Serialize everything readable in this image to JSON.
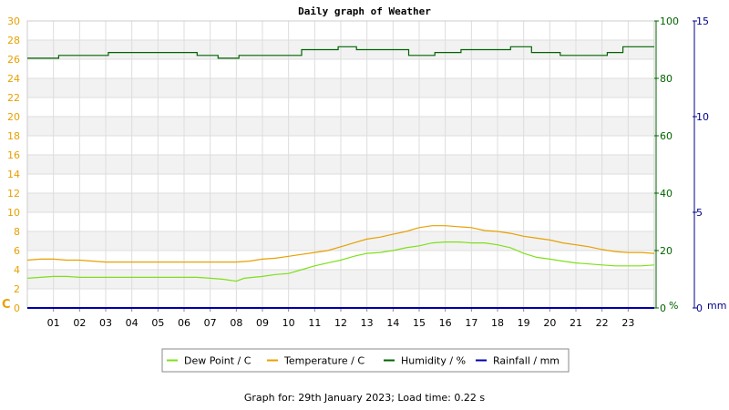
{
  "footer": "Graph for: 29th January 2023; Load time: 0.22 s",
  "chart_data": {
    "type": "line",
    "title": "Daily graph of Weather",
    "x_ticks": [
      "01",
      "02",
      "03",
      "04",
      "05",
      "06",
      "07",
      "08",
      "09",
      "10",
      "11",
      "12",
      "13",
      "14",
      "15",
      "16",
      "17",
      "18",
      "19",
      "20",
      "21",
      "22",
      "23"
    ],
    "xlim": [
      0,
      24
    ],
    "grid": true,
    "legend_position": "bottom-center",
    "axes": {
      "left": {
        "unit_label": "C",
        "ylim": [
          0,
          30
        ],
        "ticks": [
          0,
          2,
          4,
          6,
          8,
          10,
          12,
          14,
          16,
          18,
          20,
          22,
          24,
          26,
          28,
          30
        ],
        "color": "#e8a000"
      },
      "right1": {
        "unit_label": "%",
        "ylim": [
          0,
          100
        ],
        "ticks": [
          0,
          20,
          40,
          60,
          80,
          100
        ],
        "color": "#006400"
      },
      "right2": {
        "unit_label": "mm",
        "ylim": [
          0,
          15
        ],
        "ticks": [
          0,
          5,
          10,
          15
        ],
        "color": "#00008b"
      }
    },
    "series": [
      {
        "name": "Dew Point / C",
        "axis": "left",
        "color": "#7ee01a",
        "x": [
          0,
          0.5,
          1,
          1.5,
          2,
          2.5,
          3,
          4,
          5,
          6,
          6.5,
          7,
          7.5,
          8,
          8.3,
          9,
          9.5,
          10,
          10.5,
          11,
          11.5,
          12,
          12.5,
          13,
          13.5,
          14,
          14.5,
          15,
          15.5,
          16,
          16.5,
          17,
          17.5,
          18,
          18.5,
          19,
          19.5,
          20,
          20.5,
          21,
          21.5,
          22,
          22.5,
          23,
          23.5,
          24
        ],
        "y": [
          3.1,
          3.2,
          3.3,
          3.3,
          3.2,
          3.2,
          3.2,
          3.2,
          3.2,
          3.2,
          3.2,
          3.1,
          3.0,
          2.8,
          3.1,
          3.3,
          3.5,
          3.6,
          4.0,
          4.4,
          4.7,
          5.0,
          5.4,
          5.7,
          5.8,
          6.0,
          6.3,
          6.5,
          6.8,
          6.9,
          6.9,
          6.8,
          6.8,
          6.6,
          6.3,
          5.7,
          5.3,
          5.1,
          4.9,
          4.7,
          4.6,
          4.5,
          4.4,
          4.4,
          4.4,
          4.5
        ]
      },
      {
        "name": "Temperature / C",
        "axis": "left",
        "color": "#e8a000",
        "x": [
          0,
          0.5,
          1,
          1.5,
          2,
          2.5,
          3,
          4,
          5,
          6,
          7,
          7.5,
          8,
          8.5,
          9,
          9.5,
          10,
          10.5,
          11,
          11.5,
          12,
          12.5,
          13,
          13.5,
          14,
          14.5,
          15,
          15.5,
          16,
          16.5,
          17,
          17.5,
          18,
          18.5,
          19,
          19.5,
          20,
          20.5,
          21,
          21.5,
          22,
          22.5,
          23,
          23.5,
          24
        ],
        "y": [
          5.0,
          5.1,
          5.1,
          5.0,
          5.0,
          4.9,
          4.8,
          4.8,
          4.8,
          4.8,
          4.8,
          4.8,
          4.8,
          4.9,
          5.1,
          5.2,
          5.4,
          5.6,
          5.8,
          6.0,
          6.4,
          6.8,
          7.2,
          7.4,
          7.7,
          8.0,
          8.4,
          8.6,
          8.6,
          8.5,
          8.4,
          8.1,
          8.0,
          7.8,
          7.5,
          7.3,
          7.1,
          6.8,
          6.6,
          6.4,
          6.1,
          5.9,
          5.8,
          5.8,
          5.7
        ]
      },
      {
        "name": "Humidity / %",
        "axis": "right1",
        "color": "#006400",
        "x": [
          0,
          1.2,
          1.2,
          3.1,
          3.1,
          6.5,
          6.5,
          7.3,
          7.3,
          8.1,
          8.1,
          10.5,
          10.5,
          11.9,
          11.9,
          12.6,
          12.6,
          14.6,
          14.6,
          15.6,
          15.6,
          16.6,
          16.6,
          18.5,
          18.5,
          19.3,
          19.3,
          20.4,
          20.4,
          22.2,
          22.2,
          22.8,
          22.8,
          24
        ],
        "y": [
          87,
          87,
          88,
          88,
          89,
          89,
          88,
          88,
          87,
          87,
          88,
          88,
          90,
          90,
          91,
          91,
          90,
          90,
          88,
          88,
          89,
          89,
          90,
          90,
          91,
          91,
          89,
          89,
          88,
          88,
          89,
          89,
          91,
          91
        ]
      },
      {
        "name": "Rainfall / mm",
        "axis": "right2",
        "color": "#0000aa",
        "x": [
          0,
          24
        ],
        "y": [
          0,
          0
        ]
      }
    ]
  }
}
